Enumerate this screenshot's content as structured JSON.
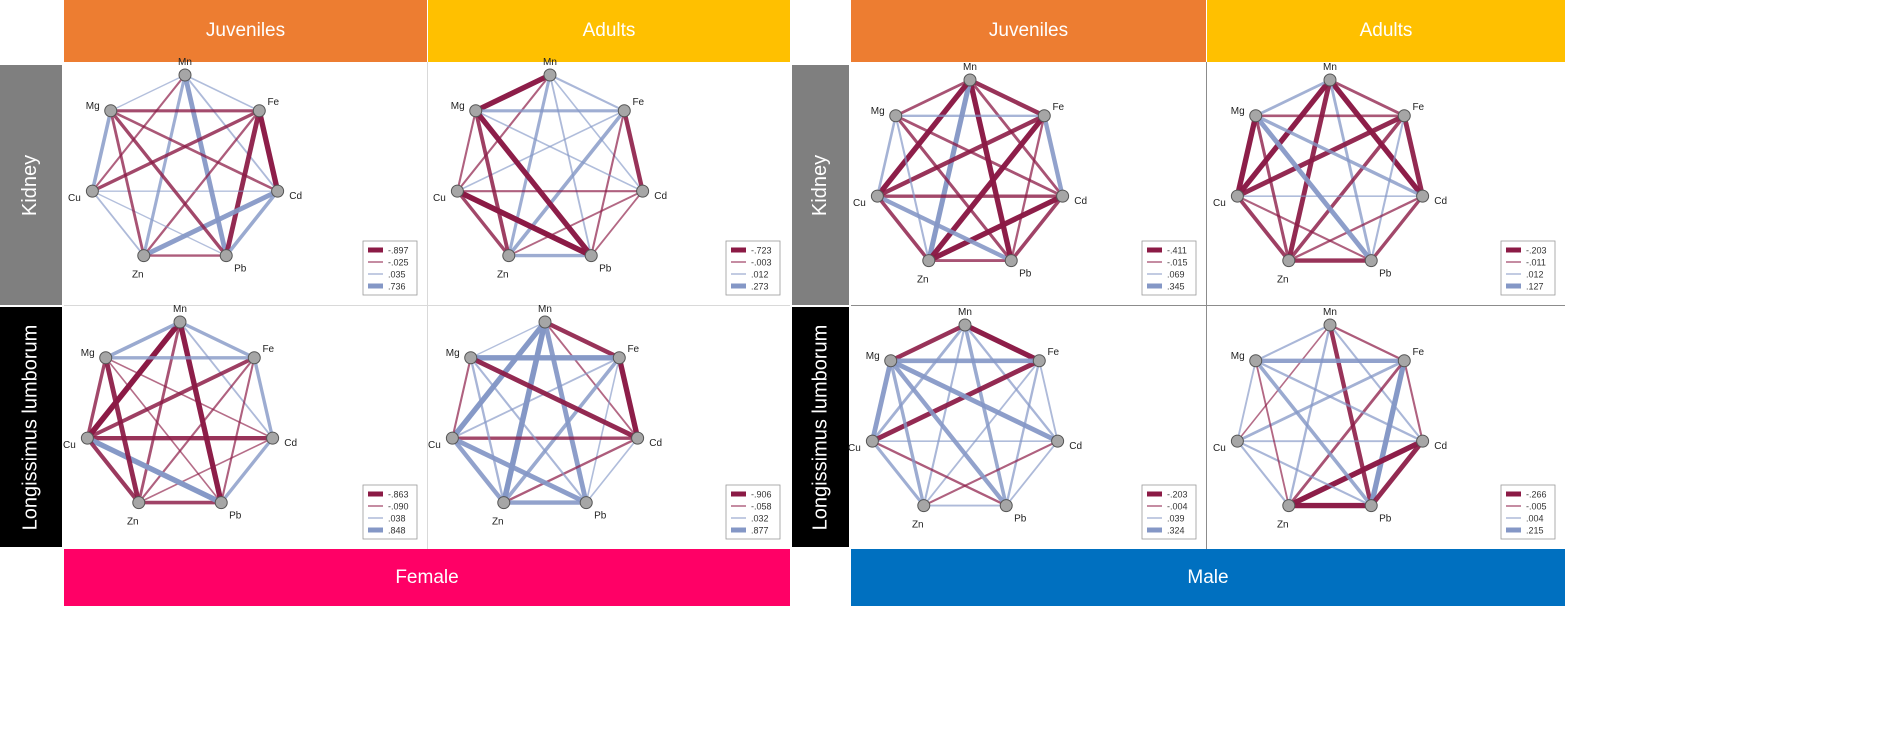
{
  "colors": {
    "juveniles": "#ED7D31",
    "adults": "#FFC000",
    "kidney": "#7F7F7F",
    "longissimus": "#000000",
    "female": "#FF0066",
    "male": "#0070C0",
    "negative_edge": "#8B1A45",
    "positive_edge": "#8497C6",
    "node": "#A6A6A6"
  },
  "headers": {
    "female": {
      "juveniles": "Juveniles",
      "adults": "Adults",
      "kidney": "Kidney",
      "longissimus": "Longissimus lumborum",
      "sex": "Female"
    },
    "male": {
      "juveniles": "Juveniles",
      "adults": "Adults",
      "kidney": "Kidney",
      "longissimus": "Longissimus lumborum",
      "sex": "Male"
    }
  },
  "elements": [
    "Mn",
    "Fe",
    "Cd",
    "Pb",
    "Zn",
    "Cu",
    "Mg"
  ],
  "panels": [
    {
      "id": "female-juv-kidney",
      "legend": [
        "-.897",
        "-.025",
        ".035",
        ".736"
      ],
      "edges": [
        [
          "Mn",
          "Fe",
          0.2,
          1
        ],
        [
          "Mn",
          "Cd",
          0.25,
          1
        ],
        [
          "Mn",
          "Pb",
          0.85,
          1
        ],
        [
          "Mn",
          "Zn",
          0.5,
          1
        ],
        [
          "Mn",
          "Cu",
          0.3,
          -1
        ],
        [
          "Mn",
          "Mg",
          0.15,
          1
        ],
        [
          "Fe",
          "Cd",
          0.95,
          -1
        ],
        [
          "Fe",
          "Pb",
          0.85,
          -1
        ],
        [
          "Fe",
          "Zn",
          0.35,
          -1
        ],
        [
          "Fe",
          "Cu",
          0.55,
          -1
        ],
        [
          "Fe",
          "Mg",
          0.5,
          -1
        ],
        [
          "Cd",
          "Pb",
          0.6,
          1
        ],
        [
          "Cd",
          "Zn",
          0.85,
          1
        ],
        [
          "Cd",
          "Cu",
          0.15,
          1
        ],
        [
          "Cd",
          "Mg",
          0.4,
          -1
        ],
        [
          "Pb",
          "Zn",
          0.35,
          -1
        ],
        [
          "Pb",
          "Cu",
          0.15,
          1
        ],
        [
          "Pb",
          "Mg",
          0.55,
          -1
        ],
        [
          "Zn",
          "Cu",
          0.25,
          1
        ],
        [
          "Zn",
          "Mg",
          0.45,
          -1
        ],
        [
          "Cu",
          "Mg",
          0.6,
          1
        ]
      ]
    },
    {
      "id": "female-adult-kidney",
      "legend": [
        "-.723",
        "-.003",
        ".012",
        ".273"
      ],
      "edges": [
        [
          "Mn",
          "Fe",
          0.3,
          1
        ],
        [
          "Mn",
          "Cd",
          0.2,
          1
        ],
        [
          "Mn",
          "Pb",
          0.25,
          1
        ],
        [
          "Mn",
          "Zn",
          0.5,
          1
        ],
        [
          "Mn",
          "Cu",
          0.3,
          -1
        ],
        [
          "Mn",
          "Mg",
          0.95,
          -1
        ],
        [
          "Fe",
          "Cd",
          0.75,
          -1
        ],
        [
          "Fe",
          "Pb",
          0.3,
          -1
        ],
        [
          "Fe",
          "Zn",
          0.6,
          1
        ],
        [
          "Fe",
          "Cu",
          0.2,
          1
        ],
        [
          "Fe",
          "Mg",
          0.5,
          1
        ],
        [
          "Cd",
          "Pb",
          0.25,
          -1
        ],
        [
          "Cd",
          "Zn",
          0.25,
          -1
        ],
        [
          "Cd",
          "Cu",
          0.3,
          -1
        ],
        [
          "Cd",
          "Mg",
          0.2,
          1
        ],
        [
          "Pb",
          "Zn",
          0.55,
          1
        ],
        [
          "Pb",
          "Cu",
          1.0,
          -1
        ],
        [
          "Pb",
          "Mg",
          0.95,
          -1
        ],
        [
          "Zn",
          "Cu",
          0.55,
          -1
        ],
        [
          "Zn",
          "Mg",
          0.65,
          -1
        ],
        [
          "Cu",
          "Mg",
          0.3,
          -1
        ]
      ]
    },
    {
      "id": "female-juv-long",
      "legend": [
        "-.863",
        "-.090",
        ".038",
        ".848"
      ],
      "edges": [
        [
          "Mn",
          "Fe",
          0.55,
          1
        ],
        [
          "Mn",
          "Cd",
          0.25,
          1
        ],
        [
          "Mn",
          "Pb",
          0.95,
          -1
        ],
        [
          "Mn",
          "Zn",
          0.45,
          -1
        ],
        [
          "Mn",
          "Cu",
          1.0,
          -1
        ],
        [
          "Mn",
          "Mg",
          0.6,
          1
        ],
        [
          "Fe",
          "Cd",
          0.55,
          1
        ],
        [
          "Fe",
          "Pb",
          0.3,
          -1
        ],
        [
          "Fe",
          "Zn",
          0.3,
          -1
        ],
        [
          "Fe",
          "Cu",
          0.65,
          -1
        ],
        [
          "Fe",
          "Mg",
          0.55,
          1
        ],
        [
          "Cd",
          "Pb",
          0.55,
          1
        ],
        [
          "Cd",
          "Zn",
          0.2,
          -1
        ],
        [
          "Cd",
          "Cu",
          0.75,
          -1
        ],
        [
          "Cd",
          "Mg",
          0.2,
          -1
        ],
        [
          "Pb",
          "Zn",
          0.6,
          -1
        ],
        [
          "Pb",
          "Cu",
          0.95,
          1
        ],
        [
          "Pb",
          "Mg",
          0.2,
          -1
        ],
        [
          "Zn",
          "Cu",
          0.7,
          -1
        ],
        [
          "Zn",
          "Mg",
          0.85,
          -1
        ],
        [
          "Cu",
          "Mg",
          0.55,
          -1
        ]
      ]
    },
    {
      "id": "female-adult-long",
      "legend": [
        "-.906",
        "-.058",
        ".032",
        ".877"
      ],
      "edges": [
        [
          "Mn",
          "Fe",
          0.75,
          -1
        ],
        [
          "Mn",
          "Cd",
          0.25,
          -1
        ],
        [
          "Mn",
          "Pb",
          0.85,
          1
        ],
        [
          "Mn",
          "Zn",
          1.0,
          1
        ],
        [
          "Mn",
          "Cu",
          0.95,
          1
        ],
        [
          "Mn",
          "Mg",
          0.15,
          1
        ],
        [
          "Fe",
          "Cd",
          0.95,
          -1
        ],
        [
          "Fe",
          "Pb",
          0.2,
          1
        ],
        [
          "Fe",
          "Zn",
          0.6,
          1
        ],
        [
          "Fe",
          "Cu",
          0.25,
          1
        ],
        [
          "Fe",
          "Mg",
          0.95,
          1
        ],
        [
          "Cd",
          "Pb",
          0.2,
          1
        ],
        [
          "Cd",
          "Zn",
          0.35,
          -1
        ],
        [
          "Cd",
          "Cu",
          0.55,
          -1
        ],
        [
          "Cd",
          "Mg",
          0.85,
          -1
        ],
        [
          "Pb",
          "Zn",
          0.75,
          1
        ],
        [
          "Pb",
          "Cu",
          0.85,
          1
        ],
        [
          "Pb",
          "Mg",
          0.3,
          1
        ],
        [
          "Zn",
          "Cu",
          0.75,
          1
        ],
        [
          "Zn",
          "Mg",
          0.35,
          1
        ],
        [
          "Cu",
          "Mg",
          0.3,
          -1
        ]
      ]
    },
    {
      "id": "male-juv-kidney",
      "legend": [
        "-.411",
        "-.015",
        ".069",
        ".345"
      ],
      "edges": [
        [
          "Mn",
          "Fe",
          0.75,
          -1
        ],
        [
          "Mn",
          "Cd",
          0.45,
          -1
        ],
        [
          "Mn",
          "Pb",
          0.95,
          -1
        ],
        [
          "Mn",
          "Zn",
          0.9,
          1
        ],
        [
          "Mn",
          "Cu",
          0.95,
          -1
        ],
        [
          "Mn",
          "Mg",
          0.45,
          -1
        ],
        [
          "Fe",
          "Cd",
          0.75,
          1
        ],
        [
          "Fe",
          "Pb",
          0.35,
          -1
        ],
        [
          "Fe",
          "Zn",
          0.95,
          -1
        ],
        [
          "Fe",
          "Cu",
          0.75,
          -1
        ],
        [
          "Fe",
          "Mg",
          0.35,
          1
        ],
        [
          "Cd",
          "Pb",
          0.6,
          -1
        ],
        [
          "Cd",
          "Zn",
          0.95,
          -1
        ],
        [
          "Cd",
          "Cu",
          0.55,
          -1
        ],
        [
          "Cd",
          "Mg",
          0.45,
          -1
        ],
        [
          "Pb",
          "Zn",
          0.45,
          -1
        ],
        [
          "Pb",
          "Cu",
          0.75,
          1
        ],
        [
          "Pb",
          "Mg",
          0.5,
          -1
        ],
        [
          "Zn",
          "Cu",
          0.6,
          -1
        ],
        [
          "Zn",
          "Mg",
          0.3,
          1
        ],
        [
          "Cu",
          "Mg",
          0.4,
          1
        ]
      ]
    },
    {
      "id": "male-adult-kidney",
      "legend": [
        "-.203",
        "-.011",
        ".012",
        ".127"
      ],
      "edges": [
        [
          "Mn",
          "Fe",
          0.45,
          -1
        ],
        [
          "Mn",
          "Cd",
          0.95,
          -1
        ],
        [
          "Mn",
          "Pb",
          0.45,
          1
        ],
        [
          "Mn",
          "Zn",
          0.85,
          -1
        ],
        [
          "Mn",
          "Cu",
          0.95,
          -1
        ],
        [
          "Mn",
          "Mg",
          0.45,
          1
        ],
        [
          "Fe",
          "Cd",
          0.85,
          -1
        ],
        [
          "Fe",
          "Pb",
          0.3,
          1
        ],
        [
          "Fe",
          "Zn",
          0.6,
          -1
        ],
        [
          "Fe",
          "Cu",
          0.85,
          -1
        ],
        [
          "Fe",
          "Mg",
          0.4,
          -1
        ],
        [
          "Cd",
          "Pb",
          0.55,
          -1
        ],
        [
          "Cd",
          "Zn",
          0.35,
          -1
        ],
        [
          "Cd",
          "Cu",
          0.2,
          1
        ],
        [
          "Cd",
          "Mg",
          0.55,
          1
        ],
        [
          "Pb",
          "Zn",
          0.75,
          -1
        ],
        [
          "Pb",
          "Cu",
          0.3,
          -1
        ],
        [
          "Pb",
          "Mg",
          0.85,
          1
        ],
        [
          "Zn",
          "Cu",
          0.65,
          -1
        ],
        [
          "Zn",
          "Mg",
          0.5,
          -1
        ],
        [
          "Cu",
          "Mg",
          0.95,
          -1
        ]
      ]
    },
    {
      "id": "male-juv-long",
      "legend": [
        "-.203",
        "-.004",
        ".039",
        ".324"
      ],
      "edges": [
        [
          "Mn",
          "Fe",
          0.95,
          -1
        ],
        [
          "Mn",
          "Cd",
          0.35,
          1
        ],
        [
          "Mn",
          "Pb",
          0.6,
          1
        ],
        [
          "Mn",
          "Zn",
          0.3,
          1
        ],
        [
          "Mn",
          "Cu",
          0.45,
          1
        ],
        [
          "Mn",
          "Mg",
          0.75,
          -1
        ],
        [
          "Fe",
          "Cd",
          0.25,
          1
        ],
        [
          "Fe",
          "Pb",
          0.35,
          1
        ],
        [
          "Fe",
          "Zn",
          0.25,
          1
        ],
        [
          "Fe",
          "Cu",
          0.85,
          -1
        ],
        [
          "Fe",
          "Mg",
          0.8,
          1
        ],
        [
          "Cd",
          "Pb",
          0.25,
          1
        ],
        [
          "Cd",
          "Zn",
          0.3,
          -1
        ],
        [
          "Cd",
          "Cu",
          0.2,
          1
        ],
        [
          "Cd",
          "Mg",
          0.85,
          1
        ],
        [
          "Pb",
          "Zn",
          0.25,
          1
        ],
        [
          "Pb",
          "Cu",
          0.35,
          -1
        ],
        [
          "Pb",
          "Mg",
          0.75,
          1
        ],
        [
          "Zn",
          "Cu",
          0.5,
          1
        ],
        [
          "Zn",
          "Mg",
          0.55,
          1
        ],
        [
          "Cu",
          "Mg",
          0.85,
          1
        ]
      ]
    },
    {
      "id": "male-adult-long",
      "legend": [
        "-.266",
        "-.005",
        ".004",
        ".215"
      ],
      "edges": [
        [
          "Mn",
          "Fe",
          0.35,
          -1
        ],
        [
          "Mn",
          "Cd",
          0.3,
          1
        ],
        [
          "Mn",
          "Pb",
          0.75,
          -1
        ],
        [
          "Mn",
          "Zn",
          0.35,
          1
        ],
        [
          "Mn",
          "Cu",
          0.2,
          -1
        ],
        [
          "Mn",
          "Mg",
          0.3,
          1
        ],
        [
          "Fe",
          "Cd",
          0.3,
          -1
        ],
        [
          "Fe",
          "Pb",
          0.95,
          1
        ],
        [
          "Fe",
          "Zn",
          0.45,
          -1
        ],
        [
          "Fe",
          "Cu",
          0.45,
          1
        ],
        [
          "Fe",
          "Mg",
          0.75,
          1
        ],
        [
          "Cd",
          "Pb",
          0.85,
          -1
        ],
        [
          "Cd",
          "Zn",
          0.95,
          -1
        ],
        [
          "Cd",
          "Cu",
          0.25,
          1
        ],
        [
          "Cd",
          "Mg",
          0.35,
          1
        ],
        [
          "Pb",
          "Zn",
          0.95,
          -1
        ],
        [
          "Pb",
          "Cu",
          0.3,
          1
        ],
        [
          "Pb",
          "Mg",
          0.6,
          1
        ],
        [
          "Zn",
          "Cu",
          0.3,
          1
        ],
        [
          "Zn",
          "Mg",
          0.25,
          -1
        ],
        [
          "Cu",
          "Mg",
          0.25,
          1
        ]
      ]
    }
  ]
}
